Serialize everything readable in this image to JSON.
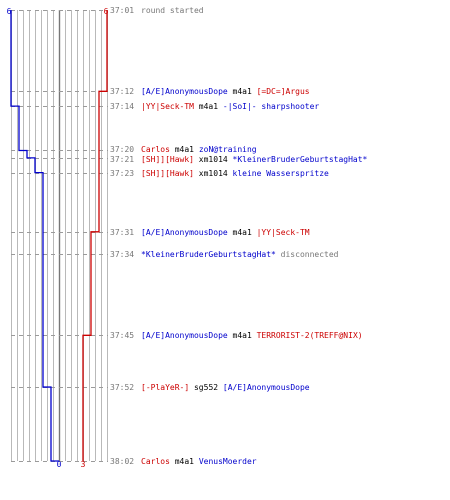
{
  "colors": {
    "ct": "#0000cc",
    "t": "#cc0000",
    "neutral": "#000000",
    "time": "#777777",
    "grid": "#b9b9b9",
    "center": "#777777"
  },
  "chart_data": {
    "type": "line",
    "description": "Round timeline: team alive counts over time with kill events",
    "start_time": "37:01",
    "end_time": "38:02",
    "max_players": 6,
    "team_left_top_label": "6",
    "team_right_top_label": "6",
    "team_left_bottom_label": "0",
    "team_right_bottom_label": "3",
    "series": [],
    "events": [
      {
        "time": "37:01",
        "sec": 0,
        "parts": [
          {
            "text": "round started",
            "c": "time"
          }
        ]
      },
      {
        "time": "37:12",
        "sec": 11,
        "parts": [
          {
            "text": "[A/E]AnonymousDope",
            "c": "ct"
          },
          {
            "text": " m4a1 ",
            "c": "neutral"
          },
          {
            "text": "[=DC=]Argus",
            "c": "t"
          }
        ]
      },
      {
        "time": "37:14",
        "sec": 13,
        "parts": [
          {
            "text": "|YY|Seck-TM",
            "c": "t"
          },
          {
            "text": " m4a1 ",
            "c": "neutral"
          },
          {
            "text": "-|SoI|- sharpshooter",
            "c": "ct"
          }
        ]
      },
      {
        "time": "37:20",
        "sec": 19,
        "parts": [
          {
            "text": "Carlos",
            "c": "t"
          },
          {
            "text": " m4a1 ",
            "c": "neutral"
          },
          {
            "text": "zoN@training",
            "c": "ct"
          }
        ]
      },
      {
        "time": "37:21",
        "sec": 20,
        "parts": [
          {
            "text": "[SH]][Hawk]",
            "c": "t"
          },
          {
            "text": " xm1014 ",
            "c": "neutral"
          },
          {
            "text": "*KleinerBruderGeburtstagHat*",
            "c": "ct"
          }
        ]
      },
      {
        "time": "37:23",
        "sec": 22,
        "parts": [
          {
            "text": "[SH]][Hawk]",
            "c": "t"
          },
          {
            "text": " xm1014 ",
            "c": "neutral"
          },
          {
            "text": "kleine Wasserspritze",
            "c": "ct"
          }
        ]
      },
      {
        "time": "37:31",
        "sec": 30,
        "parts": [
          {
            "text": "[A/E]AnonymousDope",
            "c": "ct"
          },
          {
            "text": " m4a1 ",
            "c": "neutral"
          },
          {
            "text": "|YY|Seck-TM",
            "c": "t"
          }
        ]
      },
      {
        "time": "37:34",
        "sec": 33,
        "parts": [
          {
            "text": "*KleinerBruderGeburtstagHat*",
            "c": "ct"
          },
          {
            "text": " disconnected",
            "c": "time"
          }
        ]
      },
      {
        "time": "37:45",
        "sec": 44,
        "parts": [
          {
            "text": "[A/E]AnonymousDope",
            "c": "ct"
          },
          {
            "text": " m4a1 ",
            "c": "neutral"
          },
          {
            "text": "TERRORIST-2(TREFF@NIX)",
            "c": "t"
          }
        ]
      },
      {
        "time": "37:52",
        "sec": 51,
        "parts": [
          {
            "text": "[-PlaYeR-]",
            "c": "t"
          },
          {
            "text": " sg552 ",
            "c": "neutral"
          },
          {
            "text": "[A/E]AnonymousDope",
            "c": "ct"
          }
        ]
      },
      {
        "time": "38:02",
        "sec": 61,
        "parts": [
          {
            "text": "Carlos",
            "c": "t"
          },
          {
            "text": " m4a1 ",
            "c": "neutral"
          },
          {
            "text": "VenusMoerder",
            "c": "ct"
          }
        ]
      }
    ],
    "ct_alive": [
      [
        0,
        6
      ],
      [
        11,
        6
      ],
      [
        13,
        5
      ],
      [
        19,
        4
      ],
      [
        20,
        3
      ],
      [
        22,
        2
      ],
      [
        51,
        1
      ],
      [
        61,
        0
      ]
    ],
    "t_alive": [
      [
        0,
        6
      ],
      [
        11,
        5
      ],
      [
        30,
        4
      ],
      [
        44,
        3
      ],
      [
        61,
        3
      ]
    ]
  }
}
